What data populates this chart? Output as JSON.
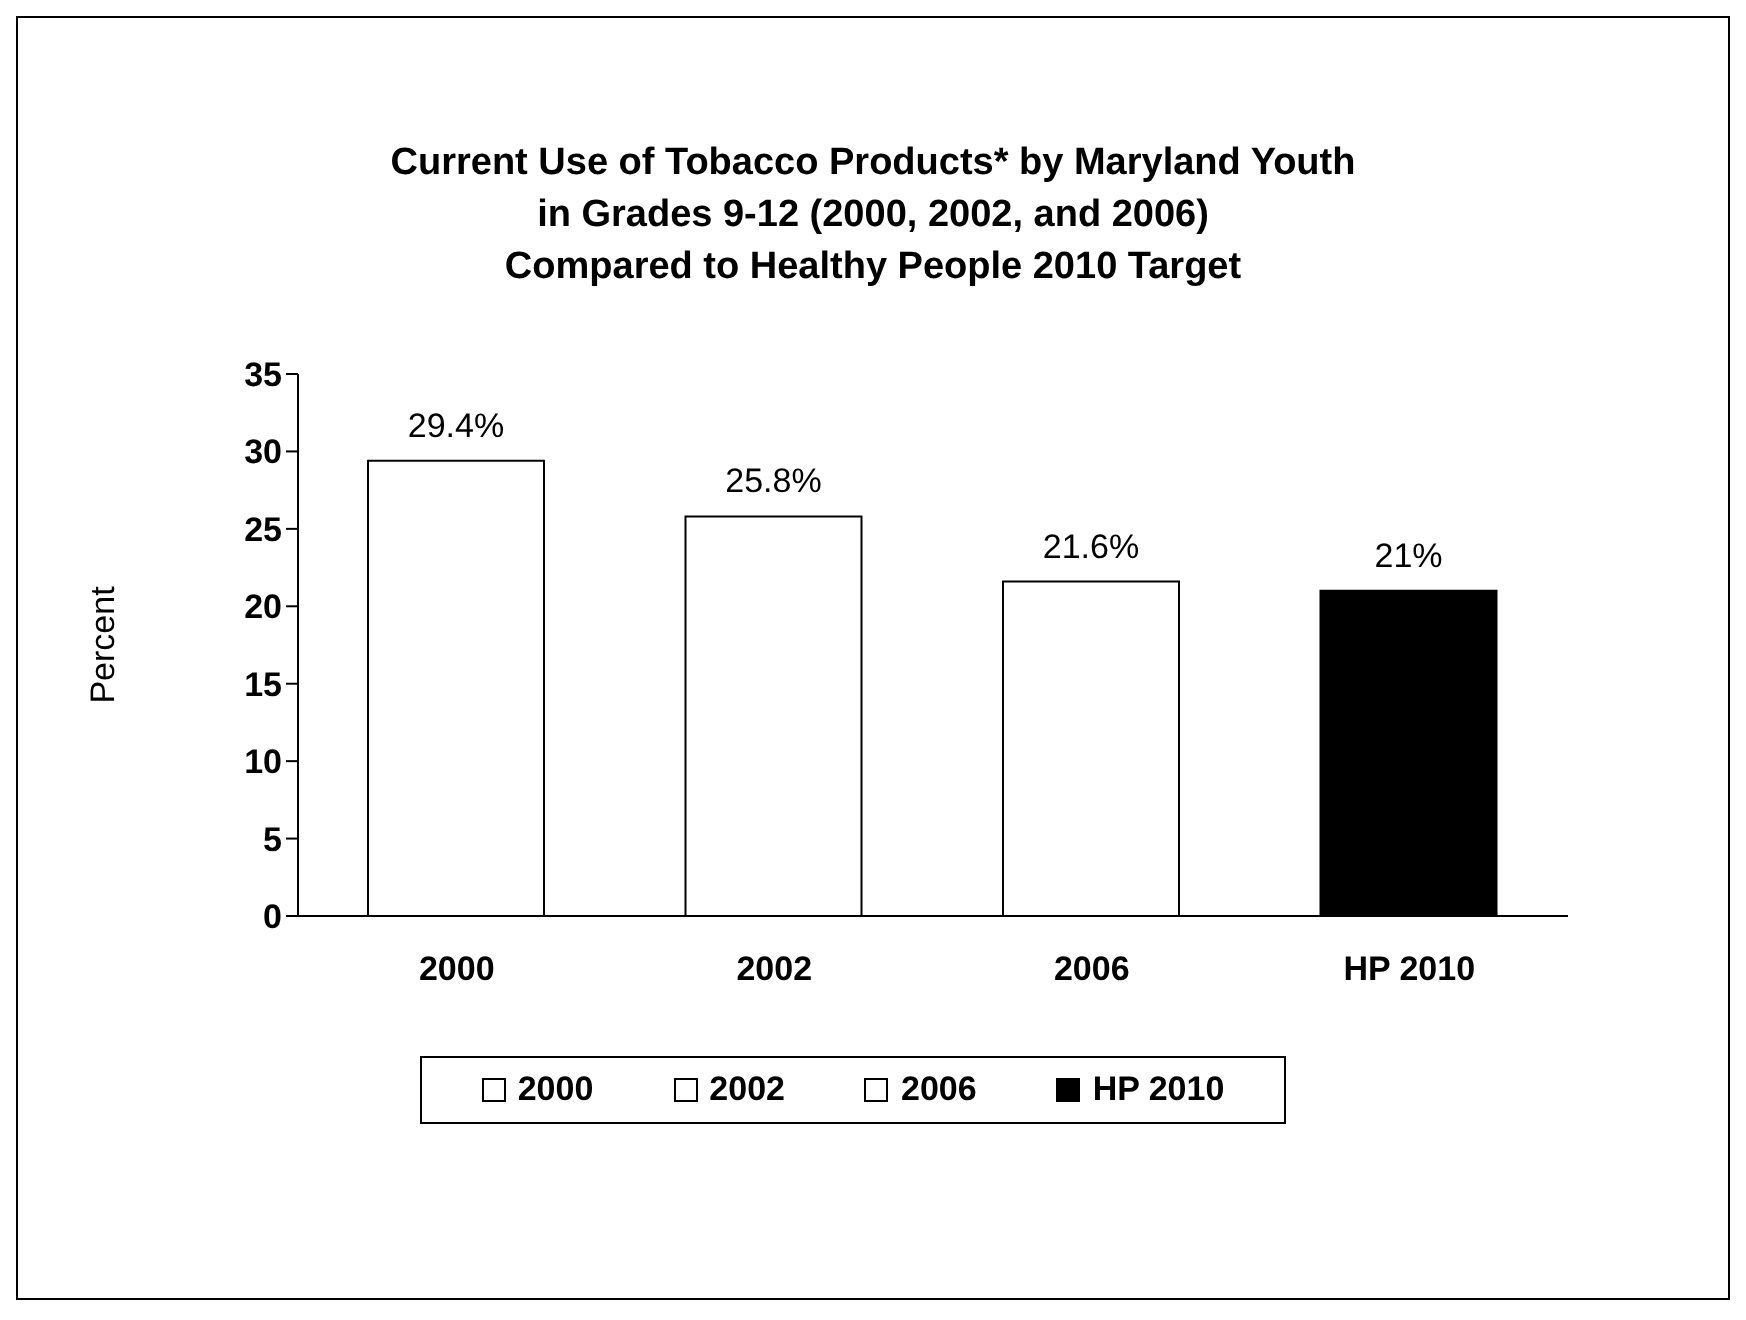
{
  "chart_data": {
    "type": "bar",
    "title": "Current Use of Tobacco Products* by Maryland Youth\nin Grades 9-12 (2000, 2002, and 2006)\nCompared to Healthy People 2010 Target",
    "ylabel": "Percent",
    "categories": [
      "2000",
      "2002",
      "2006",
      "HP 2010"
    ],
    "stacked": true,
    "series": [
      {
        "name": "2000",
        "color": "#ffffff",
        "values": [
          29.4,
          null,
          null,
          null
        ],
        "value_labels": [
          "29.4%",
          null,
          null,
          null
        ]
      },
      {
        "name": "2002",
        "color": "#ffffff",
        "values": [
          null,
          25.8,
          null,
          null
        ],
        "value_labels": [
          null,
          "25.8%",
          null,
          null
        ]
      },
      {
        "name": "2006",
        "color": "#ffffff",
        "values": [
          null,
          null,
          21.6,
          null
        ],
        "value_labels": [
          null,
          null,
          "21.6%",
          null
        ]
      },
      {
        "name": "HP 2010",
        "color": "#000000",
        "values": [
          null,
          null,
          null,
          21
        ],
        "value_labels": [
          null,
          null,
          null,
          "21%"
        ]
      }
    ],
    "ylim": [
      0,
      35
    ],
    "yticks": [
      0,
      5,
      10,
      15,
      20,
      25,
      30,
      35
    ],
    "legend": "bottom"
  }
}
